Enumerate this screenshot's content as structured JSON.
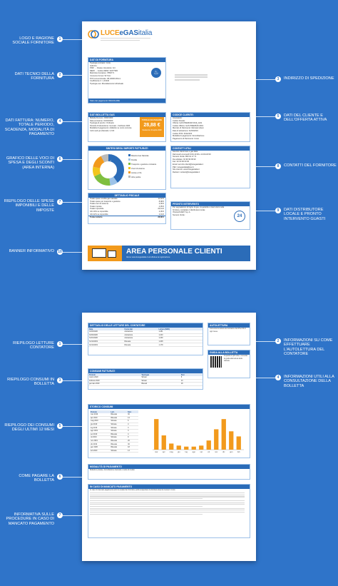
{
  "page1": {
    "callouts_left": [
      {
        "n": "1",
        "text": "Logo e ragione sociale fornitore"
      },
      {
        "n": "2",
        "text": "Dati tecnici della fornitura"
      },
      {
        "n": "4",
        "text": "Dati fattura: numero, totale periodo, scadenza, modalità di pagamento"
      },
      {
        "n": "6",
        "text": "Grafico delle voci di spesa e degli sconti (area interna)"
      },
      {
        "n": "7",
        "text": "Riepilogo delle spese imponibili e delle imposte"
      },
      {
        "n": "10",
        "text": "Banner informativo"
      }
    ],
    "callouts_right": [
      {
        "n": "3",
        "text": "Indirizzo di spedizione"
      },
      {
        "n": "5",
        "text": "Dati del cliente e dell'offerta attiva"
      },
      {
        "n": "8",
        "text": "Contatti del fornitore"
      },
      {
        "n": "9",
        "text": "Dati distributore locale e pronto intervento guasti"
      }
    ],
    "logo": {
      "part1": "LUCE",
      "part2": "eGAS",
      "part3": "italia",
      "color_a": "#f29a1c",
      "color_b": "#2b6cb8"
    },
    "supply": {
      "title": "Dati di fornitura",
      "rows": [
        "Tipologia contratto: Civile",
        "Indirizzo:",
        "PDR: ... Classe misuratore: G4",
        "REMI: ... Codice REMI: 34377900",
        "Matricola Contatore: 7869771",
        "Consumo Annuo: 52 Smc",
        "PCS convenzionale: 38,10000 MJ/mc",
        "Coefficiente C: 1,01340",
        "Tipologia uso: Riscaldamento individuale"
      ],
      "status": "Stato dei pagamenti: REGOLARE"
    },
    "invoice": {
      "title": "Dati bolletta GAS",
      "rows": [
        "Bolletta Numero: 0000/1000",
        "Data emissione: 01/03/2020",
        "Tipologia di prezzo: Ordinario",
        "Periodo di fatturazione: Gennaio - Febbraio 2020",
        "Modalità di pagamento: Addebito su conto corrente",
        "Cicli medi per (Mensili): 2,720"
      ],
      "total_label": "Totale da pagare",
      "total_value": "28,88 €",
      "due": "Scadenza: 20 aprile 2020"
    },
    "customer": {
      "title": "Codice cliente:",
      "rows": [
        "Intestatario:",
        "Codice Fiscale:",
        "Offerta: GAS PREMIUM 2019_GAS",
        "Codice Offerta: GAS PREMIUM 2019",
        "Mercato di riferimento: Mercato Libero",
        "Data di attivazione: 01/03/2019",
        "Codice POS: 00112233",
        "Modalità di pagamento: Domiciliazione",
        "Pagamento di riferimento: Unico"
      ]
    },
    "chart": {
      "title": "Sintesi degli importi fatturati",
      "legend": [
        "Materia Gas Naturale",
        "Perdite",
        "Trasporto e gestione contatore",
        "Oneri di sistema",
        "Accise e IVA",
        "Altre partite"
      ]
    },
    "contacts": {
      "title": "Contatti utili",
      "rows": [
        "Servizio clienti luce e gas italia",
        "Dal lunedì al venerdì 9:00-13:00 e 14:00-18:00",
        "Numero Verde: 800 01 17 71",
        "Da cellulare: 02 99 99 99 99",
        "Fax: 02 00 00 00 00",
        "Email: servizio.clienti@lucegasitalia.it",
        "PEC: lucegasitalia@pec.it",
        "Sito internet: www.lucegasitalia.it",
        "Reclami: reclami@lucegasitalia.it"
      ]
    },
    "summary": {
      "title": "Dettaglio fiscale",
      "rows": [
        {
          "label": "Totale spese vendita gas naturale",
          "value": "11,62 €"
        },
        {
          "label": "Totale spese per trasporto e gestione",
          "value": "8,98 €"
        },
        {
          "label": "Totale oneri di sistema",
          "value": "2,06 €"
        },
        {
          "label": "Totale imposte",
          "value": "4,95 €"
        },
        {
          "label": "Totale imponibile",
          "value": "23,61 €"
        },
        {
          "label": "IVA 10% su imponibile",
          "value": "2,36 €"
        },
        {
          "label": "IVA 22% su imponibile",
          "value": "2,91 €"
        }
      ],
      "total_label": "Totale bolletta",
      "total_value": "28,88 €"
    },
    "emergency": {
      "title": "Pronto intervento",
      "rows": [
        "Per segnalazioni di fughe di gas, irregolarità o interruzioni nella fornitura, contattare il distributore locale",
        "ITALGAS RETI S.p.A.",
        "Numero Verde:"
      ],
      "badge": "24"
    },
    "banner": {
      "title": "Area personale clienti",
      "subtitle": "Vai su www.lucegasitalia.it ed effettua la registrazione"
    }
  },
  "page2": {
    "callouts_left": [
      {
        "n": "1",
        "text": "Riepilogo letture contatore"
      },
      {
        "n": "3",
        "text": "Riepilogo consumi in bolletta"
      },
      {
        "n": "5",
        "text": "Riepilogo dei consumi degli ultimi 12 mesi"
      },
      {
        "n": "6",
        "text": "Come pagare la bolletta"
      },
      {
        "n": "7",
        "text": "Informativa sulle procedure in caso di mancato pagamento"
      }
    ],
    "callouts_right": [
      {
        "n": "2",
        "text": "Informazioni su come effettuare l'autolettura del contatore"
      },
      {
        "n": "4",
        "text": "Informazioni utili alla consultazione della bolletta"
      }
    ],
    "readings": {
      "title": "Dettaglio delle letture del contatore",
      "headers": [
        "Data",
        "Fonte dati",
        "Lettura (SMC)"
      ],
      "rows": [
        [
          "01/03/2020",
          "Autolettura",
          "1.281"
        ],
        [
          "01/02/2020",
          "Autolettura",
          "1.240"
        ],
        [
          "31/01/2020",
          "Autolettura",
          "1.239"
        ],
        [
          "31/12/2019",
          "Rilevata",
          "1.208"
        ],
        [
          "01/12/2019",
          "Rilevata",
          "1.178"
        ]
      ]
    },
    "self_read": {
      "title": "Autolettura",
      "text": "Comunica la lettura del contatore dal 25 al 30 di ogni mese"
    },
    "guide": {
      "title": "Guida alla bolletta",
      "text": "Inquadra il QR code e consulta la guida alla lettura della bolletta"
    },
    "consumption": {
      "title": "Consumi fatturati",
      "headers": [
        "Periodo",
        "Tipologia",
        "Smc"
      ],
      "rows": [
        [
          "marzo 2020",
          "Stimati",
          "8"
        ],
        [
          "febbraio 2020",
          "Stimati",
          "13"
        ],
        [
          "gennaio 2020",
          "Rilevati",
          "18"
        ]
      ]
    },
    "history": {
      "title": "Storico consumi",
      "headers": [
        "Periodo",
        "Lett.",
        "Smc"
      ],
      "rows": [
        [
          "mar 2019",
          "Rilevata",
          "30"
        ],
        [
          "apr 2019",
          "Rilevata",
          "14"
        ],
        [
          "mag 2019",
          "Stimata",
          "6"
        ],
        [
          "giu 2019",
          "Stimata",
          "4"
        ],
        [
          "lug 2019",
          "Stimata",
          "3"
        ],
        [
          "ago 2019",
          "Stimata",
          "3"
        ],
        [
          "set 2019",
          "Rilevata",
          "4"
        ],
        [
          "ott 2019",
          "Stimata",
          "9"
        ],
        [
          "nov 2019",
          "Rilevata",
          "20"
        ],
        [
          "dic 2019",
          "Rilevata",
          "30"
        ],
        [
          "gen 2020",
          "Rilevata",
          "18"
        ],
        [
          "feb 2020",
          "Stimata",
          "13"
        ]
      ]
    },
    "payment": {
      "title": "Modalità di pagamento",
      "text": "Bollettino postale, domiciliazione bancaria o carta di credito"
    },
    "non_payment": {
      "title": "In caso di mancato pagamento",
      "text": "In caso di mancato pagamento entro la scadenza il fornitore potrà sospendere la fornitura dopo la messa in mora"
    }
  },
  "chart_data": {
    "type": "bar",
    "categories": [
      "mar",
      "apr",
      "mag",
      "giu",
      "lug",
      "ago",
      "set",
      "ott",
      "nov",
      "dic",
      "gen",
      "feb"
    ],
    "values": [
      30,
      14,
      6,
      4,
      3,
      3,
      4,
      9,
      20,
      30,
      18,
      13
    ],
    "ylim": [
      0,
      35
    ],
    "color": "#f29a1c"
  },
  "donut_data": {
    "type": "pie",
    "values": [
      40,
      8,
      20,
      10,
      14,
      8
    ],
    "colors": [
      "#2b6cb8",
      "#9dc3e8",
      "#7fbf3f",
      "#f2c51c",
      "#f29a1c",
      "#bbbbbb"
    ]
  }
}
